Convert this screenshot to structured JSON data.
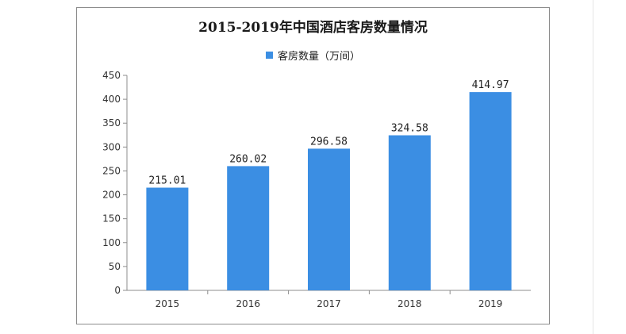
{
  "chart_data": {
    "type": "bar",
    "title": "2015-2019年中国酒店客房数量情况",
    "categories": [
      "2015",
      "2016",
      "2017",
      "2018",
      "2019"
    ],
    "series": [
      {
        "name": "客房数量（万间）",
        "values": [
          215.01,
          260.02,
          296.58,
          324.58,
          414.97
        ],
        "color": "#3b8ee3"
      }
    ],
    "data_labels": [
      "215.01",
      "260.02",
      "296.58",
      "324.58",
      "414.97"
    ],
    "yticks": [
      "0",
      "50",
      "100",
      "150",
      "200",
      "250",
      "300",
      "350",
      "400",
      "450"
    ],
    "ylim": [
      0,
      450
    ],
    "grid": false,
    "legend_position": "top-center"
  }
}
